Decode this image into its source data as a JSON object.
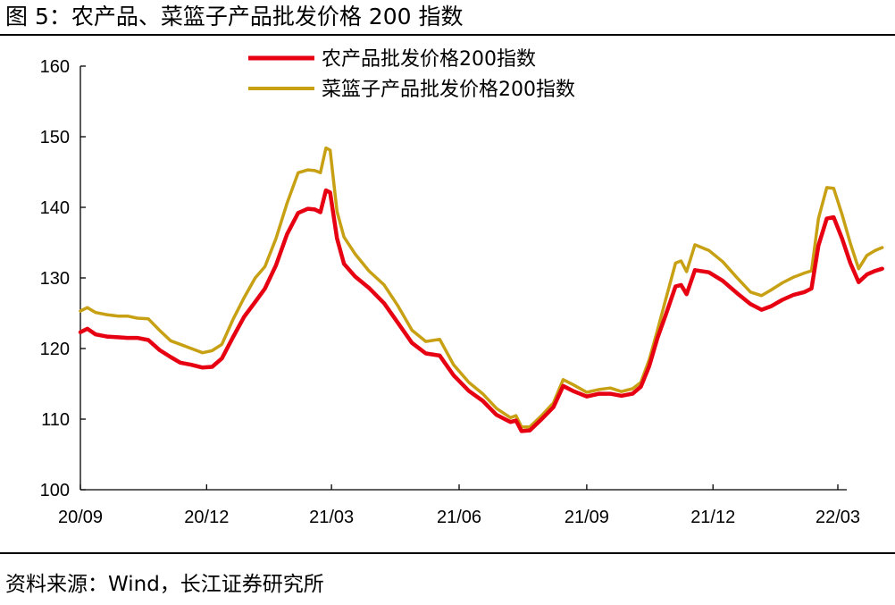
{
  "header": {
    "title": "图 5：农产品、菜篮子产品批发价格 200 指数"
  },
  "footer": {
    "source": "资料来源：Wind，长江证券研究所"
  },
  "chart_data": {
    "type": "line",
    "title": "",
    "xlabel": "",
    "ylabel": "",
    "ylim": [
      100,
      160
    ],
    "yticks": [
      100,
      110,
      120,
      130,
      140,
      150,
      160
    ],
    "xticks": [
      "20/09",
      "20/12",
      "21/03",
      "21/06",
      "21/09",
      "21/12",
      "22/03"
    ],
    "x_range": [
      "2020-09",
      "2022-03"
    ],
    "grid": false,
    "legend_position": "top-center",
    "series": [
      {
        "name": "农产品批发价格200指数",
        "color": "#e60012",
        "points": [
          [
            "2020-09-01",
            122.3
          ],
          [
            "2020-09-06",
            122.8
          ],
          [
            "2020-09-12",
            122.0
          ],
          [
            "2020-09-20",
            121.7
          ],
          [
            "2020-09-28",
            121.6
          ],
          [
            "2020-10-05",
            121.5
          ],
          [
            "2020-10-12",
            121.5
          ],
          [
            "2020-10-20",
            121.2
          ],
          [
            "2020-10-28",
            119.8
          ],
          [
            "2020-11-05",
            118.8
          ],
          [
            "2020-11-12",
            118.0
          ],
          [
            "2020-11-20",
            117.7
          ],
          [
            "2020-11-28",
            117.3
          ],
          [
            "2020-12-05",
            117.4
          ],
          [
            "2020-12-12",
            118.6
          ],
          [
            "2020-12-20",
            121.6
          ],
          [
            "2020-12-28",
            124.5
          ],
          [
            "2021-01-05",
            126.6
          ],
          [
            "2021-01-12",
            128.5
          ],
          [
            "2021-01-20",
            131.8
          ],
          [
            "2021-01-28",
            136.2
          ],
          [
            "2021-02-05",
            139.2
          ],
          [
            "2021-02-12",
            139.8
          ],
          [
            "2021-02-17",
            139.7
          ],
          [
            "2021-02-21",
            139.3
          ],
          [
            "2021-02-25",
            142.4
          ],
          [
            "2021-02-28",
            142.1
          ],
          [
            "2021-03-05",
            135.6
          ],
          [
            "2021-03-10",
            132.0
          ],
          [
            "2021-03-18",
            130.2
          ],
          [
            "2021-03-28",
            128.6
          ],
          [
            "2021-04-08",
            126.4
          ],
          [
            "2021-04-18",
            123.6
          ],
          [
            "2021-04-28",
            120.8
          ],
          [
            "2021-05-08",
            119.3
          ],
          [
            "2021-05-18",
            119.0
          ],
          [
            "2021-05-28",
            116.2
          ],
          [
            "2021-06-08",
            114.0
          ],
          [
            "2021-06-18",
            112.6
          ],
          [
            "2021-06-28",
            110.6
          ],
          [
            "2021-07-08",
            109.6
          ],
          [
            "2021-07-12",
            109.8
          ],
          [
            "2021-07-16",
            108.3
          ],
          [
            "2021-07-22",
            108.4
          ],
          [
            "2021-07-30",
            109.9
          ],
          [
            "2021-08-08",
            111.7
          ],
          [
            "2021-08-15",
            114.7
          ],
          [
            "2021-08-22",
            114.0
          ],
          [
            "2021-09-01",
            113.2
          ],
          [
            "2021-09-10",
            113.6
          ],
          [
            "2021-09-18",
            113.6
          ],
          [
            "2021-09-26",
            113.3
          ],
          [
            "2021-10-04",
            113.6
          ],
          [
            "2021-10-10",
            114.6
          ],
          [
            "2021-10-16",
            117.5
          ],
          [
            "2021-10-22",
            121.5
          ],
          [
            "2021-10-28",
            124.8
          ],
          [
            "2021-11-04",
            128.8
          ],
          [
            "2021-11-08",
            129.0
          ],
          [
            "2021-11-12",
            127.7
          ],
          [
            "2021-11-18",
            131.1
          ],
          [
            "2021-11-28",
            130.8
          ],
          [
            "2021-12-08",
            129.6
          ],
          [
            "2021-12-18",
            127.9
          ],
          [
            "2021-12-28",
            126.3
          ],
          [
            "2022-01-05",
            125.5
          ],
          [
            "2022-01-12",
            126.0
          ],
          [
            "2022-01-20",
            126.9
          ],
          [
            "2022-01-28",
            127.6
          ],
          [
            "2022-02-05",
            128.0
          ],
          [
            "2022-02-10",
            128.5
          ],
          [
            "2022-02-15",
            134.6
          ],
          [
            "2022-02-21",
            138.4
          ],
          [
            "2022-02-26",
            138.6
          ],
          [
            "2022-03-04",
            135.6
          ],
          [
            "2022-03-10",
            132.1
          ],
          [
            "2022-03-16",
            129.4
          ],
          [
            "2022-03-22",
            130.5
          ],
          [
            "2022-03-28",
            131.0
          ],
          [
            "2022-04-02",
            131.3
          ]
        ]
      },
      {
        "name": "菜篮子产品批发价格200指数",
        "color": "#c8a014",
        "points": [
          [
            "2020-09-01",
            125.3
          ],
          [
            "2020-09-06",
            125.8
          ],
          [
            "2020-09-12",
            125.1
          ],
          [
            "2020-09-20",
            124.8
          ],
          [
            "2020-09-28",
            124.6
          ],
          [
            "2020-10-05",
            124.6
          ],
          [
            "2020-10-12",
            124.3
          ],
          [
            "2020-10-20",
            124.2
          ],
          [
            "2020-10-28",
            122.6
          ],
          [
            "2020-11-05",
            121.1
          ],
          [
            "2020-11-12",
            120.6
          ],
          [
            "2020-11-20",
            120.0
          ],
          [
            "2020-11-28",
            119.4
          ],
          [
            "2020-12-05",
            119.7
          ],
          [
            "2020-12-12",
            120.6
          ],
          [
            "2020-12-20",
            124.1
          ],
          [
            "2020-12-28",
            127.2
          ],
          [
            "2021-01-05",
            130.0
          ],
          [
            "2021-01-12",
            131.6
          ],
          [
            "2021-01-20",
            135.6
          ],
          [
            "2021-01-28",
            140.6
          ],
          [
            "2021-02-05",
            144.9
          ],
          [
            "2021-02-12",
            145.3
          ],
          [
            "2021-02-17",
            145.2
          ],
          [
            "2021-02-21",
            144.9
          ],
          [
            "2021-02-25",
            148.4
          ],
          [
            "2021-02-28",
            148.1
          ],
          [
            "2021-03-05",
            139.4
          ],
          [
            "2021-03-10",
            135.8
          ],
          [
            "2021-03-18",
            133.4
          ],
          [
            "2021-03-28",
            131.0
          ],
          [
            "2021-04-08",
            129.0
          ],
          [
            "2021-04-18",
            126.0
          ],
          [
            "2021-04-28",
            122.6
          ],
          [
            "2021-05-08",
            121.0
          ],
          [
            "2021-05-18",
            121.3
          ],
          [
            "2021-05-28",
            117.7
          ],
          [
            "2021-06-08",
            115.2
          ],
          [
            "2021-06-18",
            113.6
          ],
          [
            "2021-06-28",
            111.5
          ],
          [
            "2021-07-08",
            110.2
          ],
          [
            "2021-07-12",
            110.5
          ],
          [
            "2021-07-16",
            108.9
          ],
          [
            "2021-07-22",
            108.9
          ],
          [
            "2021-07-30",
            110.4
          ],
          [
            "2021-08-08",
            112.3
          ],
          [
            "2021-08-15",
            115.6
          ],
          [
            "2021-08-22",
            114.9
          ],
          [
            "2021-09-01",
            113.8
          ],
          [
            "2021-09-10",
            114.2
          ],
          [
            "2021-09-18",
            114.4
          ],
          [
            "2021-09-26",
            113.9
          ],
          [
            "2021-10-04",
            114.3
          ],
          [
            "2021-10-10",
            115.2
          ],
          [
            "2021-10-16",
            118.4
          ],
          [
            "2021-10-22",
            122.6
          ],
          [
            "2021-10-28",
            127.0
          ],
          [
            "2021-11-04",
            132.1
          ],
          [
            "2021-11-08",
            132.4
          ],
          [
            "2021-11-12",
            130.9
          ],
          [
            "2021-11-18",
            134.7
          ],
          [
            "2021-11-28",
            133.9
          ],
          [
            "2021-12-08",
            132.3
          ],
          [
            "2021-12-18",
            130.1
          ],
          [
            "2021-12-28",
            128.0
          ],
          [
            "2022-01-05",
            127.5
          ],
          [
            "2022-01-12",
            128.3
          ],
          [
            "2022-01-20",
            129.3
          ],
          [
            "2022-01-28",
            130.1
          ],
          [
            "2022-02-05",
            130.7
          ],
          [
            "2022-02-10",
            131.0
          ],
          [
            "2022-02-15",
            138.4
          ],
          [
            "2022-02-21",
            142.8
          ],
          [
            "2022-02-26",
            142.7
          ],
          [
            "2022-03-04",
            139.0
          ],
          [
            "2022-03-10",
            134.9
          ],
          [
            "2022-03-16",
            131.3
          ],
          [
            "2022-03-22",
            133.2
          ],
          [
            "2022-03-28",
            133.9
          ],
          [
            "2022-04-02",
            134.3
          ]
        ]
      }
    ]
  }
}
